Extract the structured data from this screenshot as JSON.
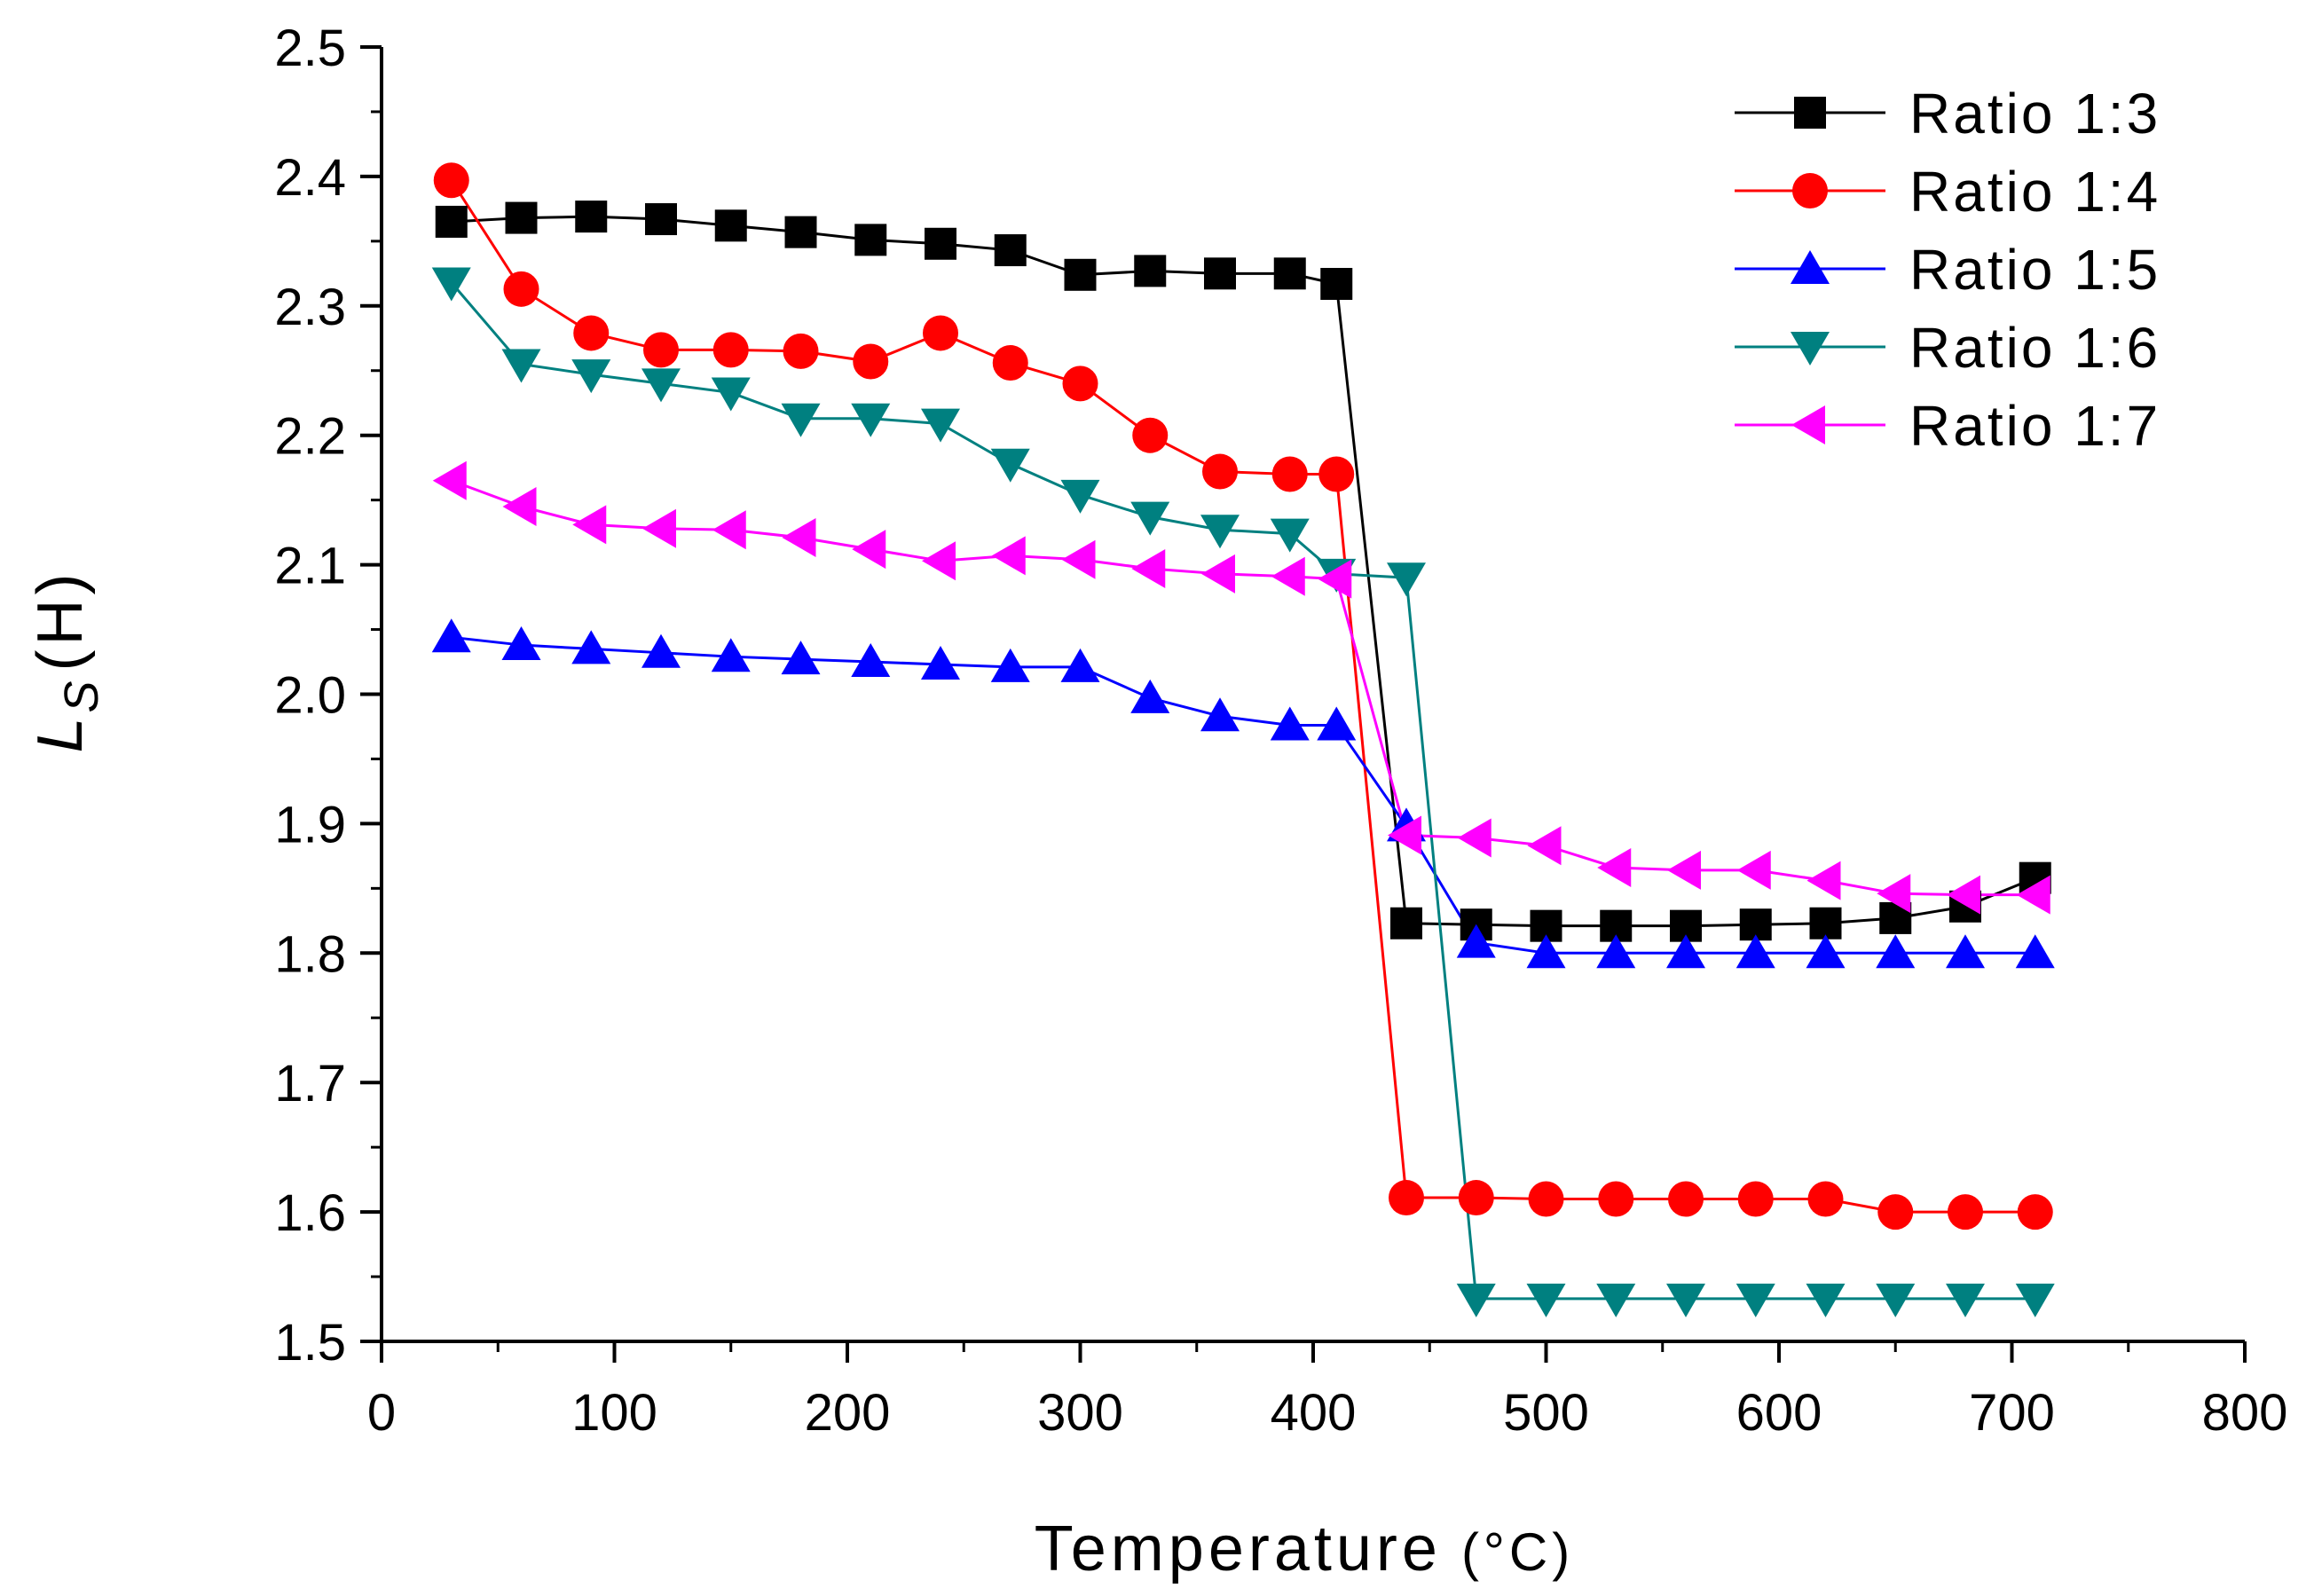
{
  "chart_data": {
    "type": "line",
    "title": "",
    "xlabel": "Temperature",
    "xlabel_unit": "(°C)",
    "ylabel_main": "L",
    "ylabel_sub": "S",
    "ylabel_unit": "(H)",
    "xlim": [
      0,
      800
    ],
    "ylim": [
      1.5,
      2.5
    ],
    "x_ticks": [
      "0",
      "100",
      "200",
      "300",
      "400",
      "500",
      "600",
      "700",
      "800"
    ],
    "y_ticks": [
      "1.5",
      "1.6",
      "1.7",
      "1.8",
      "1.9",
      "2.0",
      "2.1",
      "2.2",
      "2.3",
      "2.4",
      "2.5"
    ],
    "x": [
      30,
      60,
      90,
      120,
      150,
      180,
      210,
      240,
      270,
      300,
      330,
      360,
      390,
      410,
      440,
      470,
      500,
      530,
      560,
      590,
      620,
      650,
      680,
      710
    ],
    "legend_position": "top-right",
    "series": [
      {
        "name": "Ratio 1:3",
        "color": "#000000",
        "marker": "square",
        "values": [
          2.365,
          2.368,
          2.369,
          2.367,
          2.362,
          2.357,
          2.351,
          2.348,
          2.343,
          2.324,
          2.327,
          2.325,
          2.325,
          2.317,
          1.823,
          1.822,
          1.821,
          1.821,
          1.821,
          1.822,
          1.823,
          1.827,
          1.836,
          1.858
        ]
      },
      {
        "name": "Ratio 1:4",
        "color": "#ff0000",
        "marker": "circle",
        "values": [
          2.397,
          2.313,
          2.279,
          2.266,
          2.266,
          2.265,
          2.257,
          2.279,
          2.256,
          2.24,
          2.2,
          2.172,
          2.17,
          2.17,
          1.611,
          1.611,
          1.61,
          1.61,
          1.61,
          1.61,
          1.61,
          1.6,
          1.6,
          1.6
        ]
      },
      {
        "name": "Ratio 1:5",
        "color": "#0000ff",
        "marker": "triangle-up",
        "values": [
          2.044,
          2.038,
          2.035,
          2.032,
          2.029,
          2.027,
          2.025,
          2.023,
          2.021,
          2.021,
          1.997,
          1.983,
          1.976,
          1.976,
          1.898,
          1.808,
          1.8,
          1.8,
          1.8,
          1.8,
          1.8,
          1.8,
          1.8,
          1.8
        ]
      },
      {
        "name": "Ratio 1:6",
        "color": "#008080",
        "marker": "triangle-down",
        "values": [
          2.318,
          2.255,
          2.247,
          2.24,
          2.233,
          2.213,
          2.213,
          2.209,
          2.178,
          2.154,
          2.137,
          2.127,
          2.124,
          2.093,
          2.09,
          1.533,
          1.533,
          1.533,
          1.533,
          1.533,
          1.533,
          1.533,
          1.533,
          1.533
        ]
      },
      {
        "name": "Ratio 1:7",
        "color": "#ff00ff",
        "marker": "triangle-left",
        "values": [
          2.165,
          2.145,
          2.131,
          2.128,
          2.127,
          2.121,
          2.112,
          2.103,
          2.107,
          2.104,
          2.097,
          2.093,
          2.091,
          2.089,
          1.891,
          1.889,
          1.883,
          1.866,
          1.864,
          1.864,
          1.856,
          1.846,
          1.845,
          1.845
        ]
      }
    ]
  }
}
